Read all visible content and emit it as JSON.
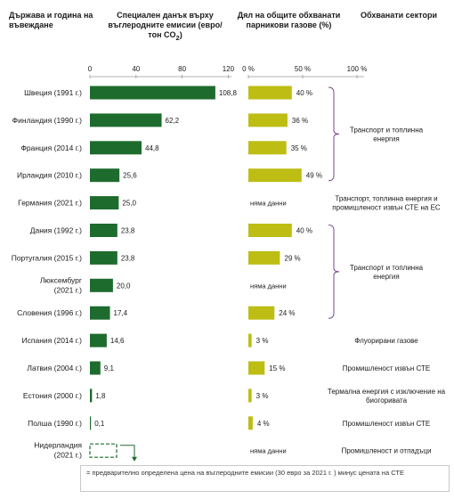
{
  "headers": {
    "country": "Държава и година на въвеждане",
    "tax": "Специален данък върху въглеродните емисии (евро/тон CO",
    "tax_sub": "2",
    "tax_end": ")",
    "share": "Дял на общите обхванати парникови газове (%)",
    "sectors": "Обхванати сектори"
  },
  "axes": {
    "tax_ticks": [
      "0",
      "40",
      "80",
      "120"
    ],
    "share_ticks": [
      "0 %",
      "50 %",
      "100 %"
    ]
  },
  "no_data_text": "няма данни",
  "footnote": "= предварително определена цена на въглеродните емисии (30 евро за 2021 г. ) минус цената на СТЕ",
  "colors": {
    "tax_bar": "#1e6b2e",
    "share_bar": "#bdbd14",
    "bracket": "#7a4a8a"
  },
  "chart_data": [
    {
      "type": "bar",
      "orientation": "horizontal",
      "title": "Специален данък върху въглеродните емисии (евро/тон CO2)",
      "xlim": [
        0,
        120
      ],
      "categories": [
        "Швеция (1991 г.)",
        "Финландия (1990 г.)",
        "Франция (2014 г.)",
        "Ирландия (2010 г.)",
        "Германия (2021 г.)",
        "Дания (1992 г.)",
        "Португалия (2015 г.)",
        "Люксембург (2021 г.)",
        "Словения (1996 г.)",
        "Испания (2014 г.)",
        "Латвия (2004 г.)",
        "Естония (2000 г.)",
        "Полша (1990 г.)",
        "Нидерландия (2021 г.)"
      ],
      "values": [
        108.8,
        62.2,
        44.8,
        25.6,
        25.0,
        23.8,
        23.8,
        20.0,
        17.4,
        14.6,
        9.1,
        1.8,
        0.1,
        null
      ],
      "labels": [
        "108,8",
        "62,2",
        "44,8",
        "25,6",
        "25,0",
        "23,8",
        "23,8",
        "20,0",
        "17,4",
        "14,6",
        "9,1",
        "1,8",
        "0,1",
        ""
      ]
    },
    {
      "type": "bar",
      "orientation": "horizontal",
      "title": "Дял на общите обхванати парникови газове (%)",
      "xlim": [
        0,
        100
      ],
      "categories": [
        "Швеция (1991 г.)",
        "Финландия (1990 г.)",
        "Франция (2014 г.)",
        "Ирландия (2010 г.)",
        "Германия (2021 г.)",
        "Дания (1992 г.)",
        "Португалия (2015 г.)",
        "Люксембург (2021 г.)",
        "Словения (1996 г.)",
        "Испания (2014 г.)",
        "Латвия (2004 г.)",
        "Естония (2000 г.)",
        "Полша (1990 г.)",
        "Нидерландия (2021 г.)"
      ],
      "values": [
        40,
        36,
        35,
        49,
        null,
        40,
        29,
        null,
        24,
        3,
        15,
        3,
        4,
        null
      ],
      "labels": [
        "40 %",
        "36 %",
        "35 %",
        "49 %",
        "",
        "40 %",
        "29 %",
        "",
        "24 %",
        "3 %",
        "15 %",
        "3 %",
        "4 %",
        ""
      ]
    }
  ],
  "sector_groups": [
    {
      "lines": [
        "Транспорт и топлинна",
        "енергия"
      ],
      "rows": [
        0,
        3
      ],
      "bracket": true
    },
    {
      "lines": [
        "Транспорт, топлинна енергия и",
        "промишленост извън СТЕ на ЕС"
      ],
      "rows": [
        4,
        4
      ],
      "bracket": false
    },
    {
      "lines": [
        "Транспорт и топлинна",
        "енергия"
      ],
      "rows": [
        5,
        8
      ],
      "bracket": true
    },
    {
      "lines": [
        "Флуорирани газове"
      ],
      "rows": [
        9,
        9
      ],
      "bracket": false
    },
    {
      "lines": [
        "Промишленост извън СТЕ"
      ],
      "rows": [
        10,
        10
      ],
      "bracket": false
    },
    {
      "lines": [
        "Термална енергия с изключение на",
        "биогоривата"
      ],
      "rows": [
        11,
        11
      ],
      "bracket": false
    },
    {
      "lines": [
        "Промишленост извън СТЕ"
      ],
      "rows": [
        12,
        12
      ],
      "bracket": false
    },
    {
      "lines": [
        "Промишленост и отпадъци"
      ],
      "rows": [
        13,
        13
      ],
      "bracket": false
    }
  ]
}
